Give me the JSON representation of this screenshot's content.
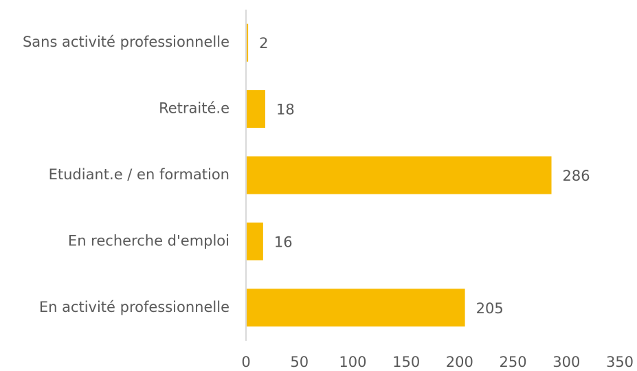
{
  "chart_data": {
    "type": "bar",
    "orientation": "horizontal",
    "categories": [
      "Sans activité professionnelle",
      "Retraité.e",
      "Etudiant.e / en formation",
      "En recherche d'emploi",
      "En activité professionnelle"
    ],
    "values": [
      2,
      18,
      286,
      16,
      205
    ],
    "color": "#f8bb00",
    "xlim": [
      0,
      350
    ],
    "xticks": [
      0,
      50,
      100,
      150,
      200,
      250,
      300,
      350
    ],
    "grid": false
  }
}
